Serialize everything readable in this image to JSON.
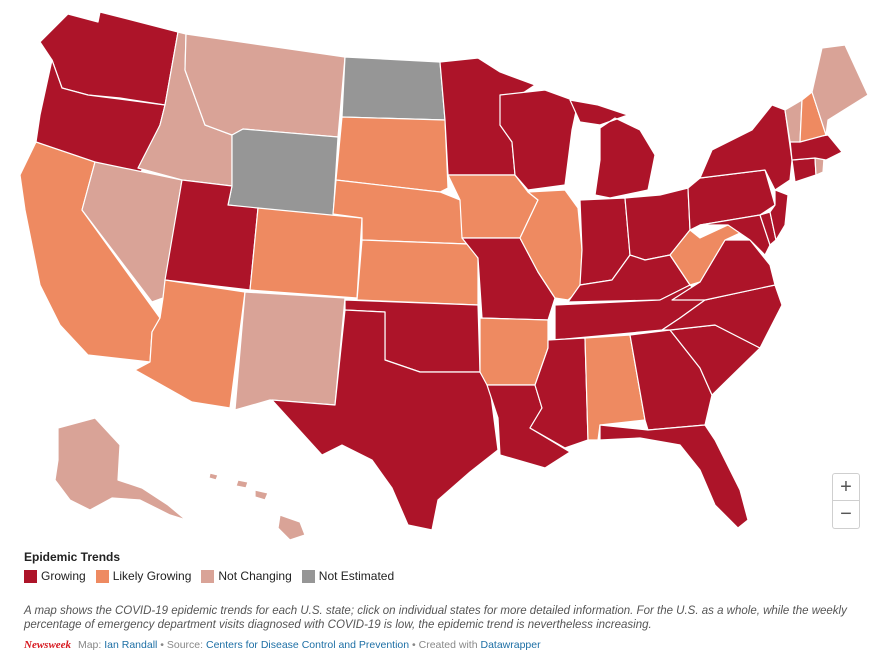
{
  "colors": {
    "growing": "#ad1429",
    "likely_growing": "#ee8a61",
    "not_changing": "#d9a397",
    "not_estimated": "#969696"
  },
  "legend": {
    "title": "Epidemic Trends",
    "items": [
      {
        "label": "Growing",
        "category": "growing"
      },
      {
        "label": "Likely Growing",
        "category": "likely_growing"
      },
      {
        "label": "Not Changing",
        "category": "not_changing"
      },
      {
        "label": "Not Estimated",
        "category": "not_estimated"
      }
    ]
  },
  "states": {
    "WA": "growing",
    "OR": "growing",
    "CA": "likely_growing",
    "NV": "not_changing",
    "ID": "not_changing",
    "MT": "not_changing",
    "WY": "not_estimated",
    "UT": "growing",
    "AZ": "likely_growing",
    "CO": "likely_growing",
    "NM": "not_changing",
    "ND": "not_estimated",
    "SD": "likely_growing",
    "NE": "likely_growing",
    "KS": "likely_growing",
    "OK": "growing",
    "TX": "growing",
    "MN": "growing",
    "IA": "likely_growing",
    "MO": "growing",
    "AR": "likely_growing",
    "LA": "growing",
    "WI": "growing",
    "IL": "likely_growing",
    "MI": "growing",
    "IN": "growing",
    "OH": "growing",
    "KY": "growing",
    "TN": "growing",
    "MS": "growing",
    "AL": "likely_growing",
    "GA": "growing",
    "FL": "growing",
    "SC": "growing",
    "NC": "growing",
    "VA": "growing",
    "WV": "likely_growing",
    "PA": "growing",
    "NY": "growing",
    "MD": "growing",
    "DE": "growing",
    "NJ": "growing",
    "CT": "growing",
    "RI": "not_changing",
    "MA": "growing",
    "VT": "not_changing",
    "NH": "likely_growing",
    "ME": "not_changing",
    "AK": "not_changing",
    "HI": "not_changing"
  },
  "zoom": {
    "in_label": "+",
    "out_label": "−"
  },
  "note": "A map shows the COVID-19 epidemic trends for each U.S. state; click on individual states for more detailed information. For the U.S. as a whole, while the weekly percentage of emergency department visits diagnosed with COVID-19 is low, the epidemic trend is nevertheless increasing.",
  "footer": {
    "brand": "Newsweek",
    "map_prefix": "Map:",
    "author": "Ian Randall",
    "source_prefix": "• Source:",
    "source": "Centers for Disease Control and Prevention",
    "created_prefix": "• Created with",
    "tool": "Datawrapper"
  }
}
